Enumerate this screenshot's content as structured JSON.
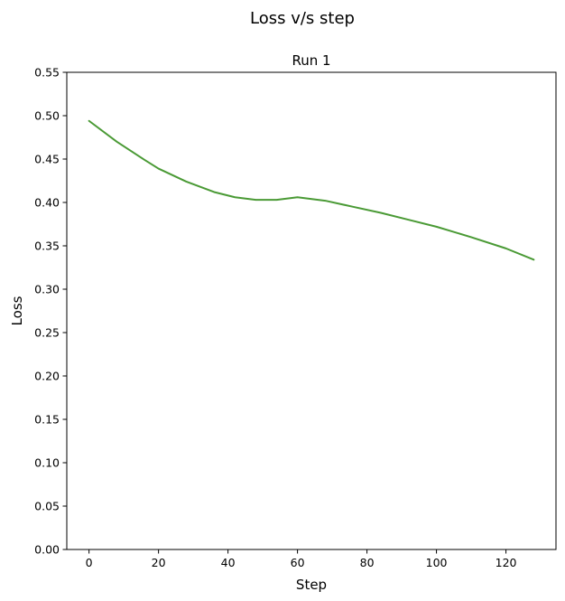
{
  "chart_data": {
    "type": "line",
    "suptitle": "Loss v/s step",
    "title": "Run 1",
    "xlabel": "Step",
    "ylabel": "Loss",
    "xlim": [
      -6.4,
      134.4
    ],
    "ylim": [
      0.0,
      0.55
    ],
    "xticks": [
      0,
      20,
      40,
      60,
      80,
      100,
      120
    ],
    "xtick_labels": [
      "0",
      "20",
      "40",
      "60",
      "80",
      "100",
      "120"
    ],
    "yticks": [
      0.0,
      0.05,
      0.1,
      0.15,
      0.2,
      0.25,
      0.3,
      0.35,
      0.4,
      0.45,
      0.5,
      0.55
    ],
    "ytick_labels": [
      "0.00",
      "0.05",
      "0.10",
      "0.15",
      "0.20",
      "0.25",
      "0.30",
      "0.35",
      "0.40",
      "0.45",
      "0.50",
      "0.55"
    ],
    "grid": false,
    "line_color": "#4a9a35",
    "series": [
      {
        "x": [
          0,
          8,
          16,
          20,
          28,
          36,
          42,
          48,
          54,
          60,
          68,
          76,
          84,
          92,
          100,
          110,
          120,
          128
        ],
        "y": [
          0.494,
          0.47,
          0.449,
          0.439,
          0.424,
          0.412,
          0.406,
          0.403,
          0.403,
          0.406,
          0.402,
          0.395,
          0.388,
          0.38,
          0.372,
          0.36,
          0.347,
          0.334
        ]
      }
    ]
  }
}
